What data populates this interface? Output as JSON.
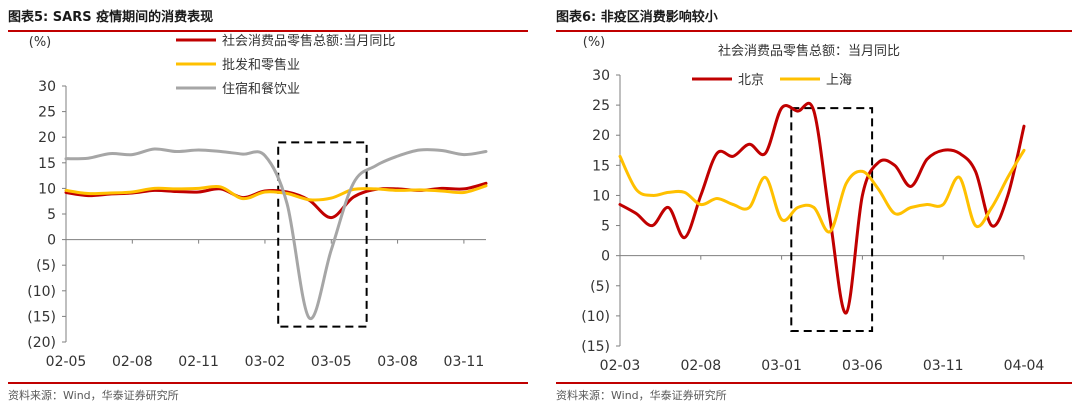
{
  "left": {
    "title": "图表5:  SARS 疫情期间的消费表现",
    "source": "资料来源：Wind，华泰证券研究所"
  },
  "right": {
    "title": "图表6:  非疫区消费影响较小",
    "source": "资料来源：Wind，华泰证券研究所"
  },
  "colors": {
    "red": "#c00000",
    "yellow": "#ffc000",
    "gray": "#a6a6a6",
    "rule": "#c00000"
  },
  "chart_data": [
    {
      "type": "line",
      "unit_label": "(%)",
      "x": [
        "2002-05",
        "2002-06",
        "2002-07",
        "2002-08",
        "2002-09",
        "2002-10",
        "2002-11",
        "2002-12",
        "2003-01",
        "2003-02",
        "2003-03",
        "2003-04",
        "2003-05",
        "2003-06",
        "2003-07",
        "2003-08",
        "2003-09",
        "2003-10",
        "2003-11",
        "2003-12"
      ],
      "x_tick_labels": [
        "02-05",
        "02-08",
        "02-11",
        "03-02",
        "03-05",
        "03-08",
        "03-11"
      ],
      "series": [
        {
          "name": "社会消费品零售总额:当月同比",
          "color": "#c00000",
          "values": [
            9.2,
            8.6,
            8.9,
            9.1,
            9.6,
            9.4,
            9.3,
            9.9,
            8.2,
            9.5,
            9.3,
            7.7,
            4.3,
            8.3,
            9.8,
            9.9,
            9.6,
            10.0,
            9.9,
            11.0
          ]
        },
        {
          "name": "批发和零售业",
          "color": "#ffc000",
          "values": [
            9.6,
            9.0,
            9.1,
            9.3,
            10.0,
            9.9,
            10.0,
            10.3,
            8.0,
            9.3,
            9.0,
            7.8,
            8.1,
            9.8,
            9.9,
            9.6,
            9.7,
            9.5,
            9.2,
            10.5
          ]
        },
        {
          "name": "住宿和餐饮业",
          "color": "#a6a6a6",
          "values": [
            15.8,
            15.9,
            16.8,
            16.6,
            17.7,
            17.2,
            17.5,
            17.2,
            16.7,
            16.4,
            7.0,
            -15.3,
            -2.0,
            11.0,
            14.4,
            16.3,
            17.5,
            17.4,
            16.6,
            17.2
          ]
        }
      ],
      "ylim": [
        -20,
        30
      ],
      "y_ticks": [
        -20,
        -15,
        -10,
        -5,
        0,
        5,
        10,
        15,
        20,
        25,
        30
      ],
      "y_tick_labels": [
        "(20)",
        "(15)",
        "(10)",
        "(5)",
        "0",
        "5",
        "10",
        "15",
        "20",
        "25",
        "30"
      ],
      "highlight_box": {
        "x_start": "2003-03",
        "x_end": "2003-07",
        "y_low": -17,
        "y_high": 19
      },
      "legend": "top"
    },
    {
      "type": "line",
      "unit_label": "(%)",
      "subtitle": "社会消费品零售总额：当月同比",
      "x": [
        "2002-03",
        "2002-04",
        "2002-05",
        "2002-06",
        "2002-07",
        "2002-08",
        "2002-09",
        "2002-10",
        "2002-11",
        "2002-12",
        "2003-01",
        "2003-02",
        "2003-03",
        "2003-04",
        "2003-05",
        "2003-06",
        "2003-07",
        "2003-08",
        "2003-09",
        "2003-10",
        "2003-11",
        "2003-12",
        "2004-01",
        "2004-02",
        "2004-03",
        "2004-04"
      ],
      "x_tick_labels": [
        "02-03",
        "02-08",
        "03-01",
        "03-06",
        "03-11",
        "04-04"
      ],
      "series": [
        {
          "name": "北京",
          "color": "#c00000",
          "values": [
            8.5,
            7.0,
            5.0,
            8.0,
            3.0,
            10.0,
            17.0,
            16.5,
            18.5,
            17.0,
            24.5,
            24.0,
            24.0,
            6.0,
            -9.5,
            10.0,
            15.5,
            15.0,
            11.5,
            16.0,
            17.5,
            17.0,
            14.0,
            5.0,
            10.0,
            21.5
          ]
        },
        {
          "name": "上海",
          "color": "#ffc000",
          "values": [
            16.5,
            11.0,
            10.0,
            10.5,
            10.5,
            8.5,
            9.5,
            8.5,
            8.0,
            13.0,
            6.0,
            8.0,
            8.0,
            4.0,
            12.0,
            14.0,
            11.0,
            7.0,
            8.0,
            8.5,
            8.5,
            13.0,
            5.0,
            8.0,
            13.0,
            17.5
          ]
        }
      ],
      "ylim": [
        -15,
        30
      ],
      "y_ticks": [
        -15,
        -10,
        -5,
        0,
        5,
        10,
        15,
        20,
        25,
        30
      ],
      "y_tick_labels": [
        "(15)",
        "(10)",
        "(5)",
        "0",
        "5",
        "10",
        "15",
        "20",
        "25",
        "30"
      ],
      "highlight_box": {
        "x_start": "2003-02",
        "x_end": "2003-07",
        "y_low": -12.5,
        "y_high": 24.5
      },
      "legend": "top"
    }
  ]
}
